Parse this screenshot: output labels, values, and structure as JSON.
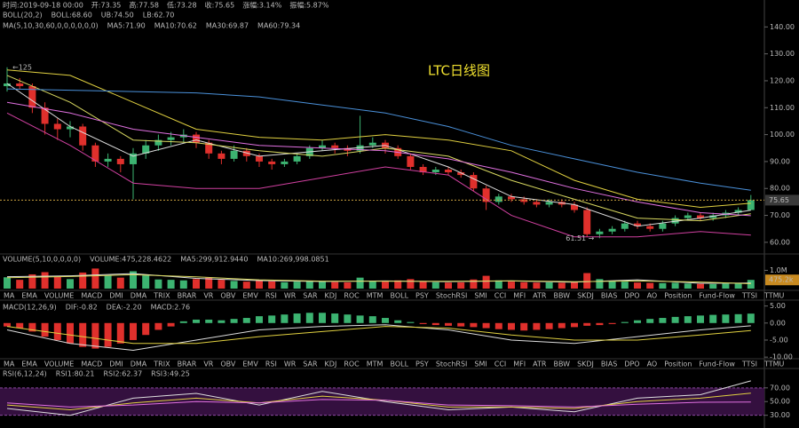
{
  "chart_data": {
    "type": "candlestick",
    "title": "LTC日线图",
    "header": [
      "时间:2019-09-18 00:00",
      "开:73.35",
      "高:77.58",
      "低:73.28",
      "收:75.65",
      "涨幅:3.14%",
      "振幅:5.87%"
    ],
    "tabs": [
      "MA",
      "EMA",
      "VOLUME",
      "MACD",
      "DMI",
      "DMA",
      "TRIX",
      "BRAR",
      "VR",
      "OBV",
      "EMV",
      "RSI",
      "WR",
      "SAR",
      "KDJ",
      "ROC",
      "MTM",
      "BOLL",
      "PSY",
      "StochRSI",
      "SMI",
      "CCI",
      "MFI",
      "ATR",
      "BBW",
      "SKDJ",
      "BIAS",
      "DPO",
      "AO",
      "Position",
      "Fund-Flow",
      "TTSI",
      "TTMU"
    ],
    "up_color": "#3cb371",
    "down_color": "#e0302c",
    "main": {
      "ylim": [
        56,
        150
      ],
      "yticks": [
        {
          "value": 60,
          "label": "60.00"
        },
        {
          "value": 70,
          "label": "70.00"
        },
        {
          "value": 80,
          "label": "80.00"
        },
        {
          "value": 90,
          "label": "90.00"
        },
        {
          "value": 100,
          "label": "100.00"
        },
        {
          "value": 110,
          "label": "110.00"
        },
        {
          "value": 120,
          "label": "120.00"
        },
        {
          "value": 130,
          "label": "130.00"
        },
        {
          "value": 140,
          "label": "140.00"
        }
      ],
      "last": 75.65,
      "candles": [
        [
          118,
          125,
          116,
          119
        ],
        [
          119,
          121,
          117,
          118
        ],
        [
          118,
          119,
          108,
          110
        ],
        [
          110,
          112,
          100,
          104
        ],
        [
          104,
          106,
          98,
          102
        ],
        [
          102,
          105,
          99,
          103
        ],
        [
          103,
          104,
          94,
          96
        ],
        [
          96,
          97,
          88,
          90
        ],
        [
          90,
          93,
          88,
          91
        ],
        [
          91,
          92,
          86,
          89
        ],
        [
          89,
          95,
          76,
          93
        ],
        [
          93,
          98,
          91,
          96
        ],
        [
          96,
          100,
          94,
          98
        ],
        [
          98,
          101,
          96,
          99
        ],
        [
          99,
          102,
          97,
          100
        ],
        [
          100,
          101,
          95,
          97
        ],
        [
          97,
          98,
          91,
          93
        ],
        [
          93,
          94,
          89,
          91
        ],
        [
          91,
          96,
          90,
          94
        ],
        [
          94,
          95,
          90,
          92
        ],
        [
          92,
          93,
          88,
          90
        ],
        [
          90,
          91,
          87,
          89
        ],
        [
          89,
          91,
          88,
          90
        ],
        [
          90,
          93,
          89,
          92
        ],
        [
          92,
          96,
          91,
          95
        ],
        [
          95,
          98,
          94,
          96
        ],
        [
          96,
          97,
          93,
          95
        ],
        [
          95,
          96,
          92,
          94
        ],
        [
          94,
          107,
          93,
          96
        ],
        [
          96,
          99,
          95,
          97
        ],
        [
          97,
          98,
          93,
          95
        ],
        [
          95,
          96,
          91,
          92
        ],
        [
          92,
          93,
          87,
          88
        ],
        [
          88,
          89,
          85,
          86
        ],
        [
          86,
          88,
          85,
          87
        ],
        [
          87,
          88,
          85,
          86
        ],
        [
          86,
          87,
          84,
          85
        ],
        [
          85,
          86,
          79,
          80
        ],
        [
          80,
          81,
          72,
          75
        ],
        [
          75,
          78,
          74,
          77
        ],
        [
          77,
          78,
          75,
          76
        ],
        [
          76,
          77,
          74,
          75
        ],
        [
          75,
          76,
          73,
          74
        ],
        [
          74,
          76,
          73,
          75
        ],
        [
          75,
          76,
          73,
          74
        ],
        [
          74,
          75,
          71,
          72
        ],
        [
          72,
          73,
          62,
          63
        ],
        [
          63,
          65,
          61.51,
          64
        ],
        [
          64,
          66,
          63,
          65
        ],
        [
          65,
          68,
          64,
          67
        ],
        [
          67,
          68,
          65,
          66
        ],
        [
          66,
          67,
          64,
          65
        ],
        [
          65,
          68,
          64,
          67
        ],
        [
          67,
          70,
          66,
          69
        ],
        [
          69,
          71,
          68,
          70
        ],
        [
          70,
          71,
          68,
          69
        ],
        [
          69,
          71,
          68,
          70
        ],
        [
          70,
          72,
          69,
          71
        ],
        [
          71,
          73,
          70,
          72
        ],
        [
          72,
          77.58,
          72,
          75.65
        ]
      ],
      "annotations": [
        {
          "text": "←125",
          "value": 125,
          "index": 0
        },
        {
          "text": "61.51 →",
          "value": 61.51,
          "index": 47
        }
      ],
      "groups": [
        {
          "label": "BOLL(20,2)",
          "texts": [
            "BOLL:68.60"
          ],
          "series": [
            {
              "name": "UB:74.50",
              "color": "#e0d040",
              "x": [
                0,
                5,
                10,
                15,
                20,
                25,
                30,
                35,
                40,
                45,
                50,
                55,
                59
              ],
              "values": [
                124,
                122,
                112,
                102,
                99,
                98,
                100,
                98,
                94,
                83,
                76,
                73,
                74.5
              ]
            },
            {
              "name": "LB:62.70",
              "color": "#d040a0",
              "x": [
                0,
                5,
                10,
                15,
                20,
                25,
                30,
                35,
                40,
                45,
                50,
                55,
                59
              ],
              "values": [
                108,
                96,
                82,
                80,
                80,
                84,
                88,
                85,
                70,
                62,
                62,
                64,
                62.7
              ]
            }
          ]
        },
        {
          "label": "MA(5,10,30,60,0,0,0,0,0,0)",
          "texts": [],
          "series": [
            {
              "name": "MA5:71.90",
              "color": "#dddddd",
              "x": [
                0,
                5,
                10,
                15,
                20,
                25,
                30,
                35,
                40,
                45,
                50,
                55,
                59
              ],
              "values": [
                119,
                103,
                92,
                98,
                92,
                94,
                96,
                88,
                77,
                74,
                66,
                69,
                71.9
              ]
            },
            {
              "name": "MA10:70.62",
              "color": "#d8d860",
              "x": [
                0,
                5,
                10,
                15,
                20,
                25,
                30,
                35,
                40,
                45,
                50,
                55,
                59
              ],
              "values": [
                122,
                112,
                98,
                97,
                94,
                92,
                95,
                92,
                83,
                76,
                69,
                68,
                70.62
              ]
            },
            {
              "name": "MA30:69.87",
              "color": "#e070e0",
              "x": [
                0,
                5,
                10,
                15,
                20,
                25,
                30,
                35,
                40,
                45,
                50,
                55,
                59
              ],
              "values": [
                112,
                108,
                102,
                99,
                96,
                95,
                94,
                91,
                86,
                80,
                75,
                71,
                69.87
              ]
            },
            {
              "name": "MA60:79.34",
              "color": "#4a90d9",
              "x": [
                0,
                5,
                10,
                15,
                20,
                25,
                30,
                35,
                40,
                45,
                50,
                55,
                59
              ],
              "values": [
                117,
                116.5,
                116,
                115.5,
                114,
                111,
                108,
                103,
                96,
                91,
                86,
                82,
                79.34
              ]
            }
          ]
        }
      ]
    },
    "volume": {
      "ylim": [
        0,
        1800000
      ],
      "yticks": [
        {
          "value": 1000000,
          "label": "1.0M"
        }
      ],
      "last": {
        "value": 475228.4622,
        "label": "475.2k"
      },
      "values": [
        620000,
        480000,
        780000,
        900000,
        650000,
        520000,
        880000,
        1100000,
        700000,
        600000,
        950000,
        720000,
        500000,
        480000,
        450000,
        520000,
        600000,
        480000,
        420000,
        380000,
        450000,
        400000,
        350000,
        380000,
        420000,
        380000,
        360000,
        340000,
        600000,
        420000,
        380000,
        450000,
        520000,
        400000,
        350000,
        330000,
        340000,
        500000,
        700000,
        450000,
        380000,
        350000,
        330000,
        340000,
        320000,
        380000,
        850000,
        520000,
        420000,
        380000,
        330000,
        310000,
        300000,
        320000,
        280000,
        260000,
        250000,
        270000,
        300000,
        475228.4622
      ],
      "groups": [
        {
          "label": "VOLUME(5,10,0,0,0,0)",
          "texts": [
            "VOLUME:475,228.4622"
          ],
          "series": [
            {
              "name": "MA5:299,912.9440",
              "color": "#dddddd",
              "x": [
                0,
                5,
                10,
                15,
                20,
                25,
                30,
                35,
                40,
                45,
                50,
                55,
                59
              ],
              "values": [
                650000,
                700000,
                820000,
                560000,
                440000,
                390000,
                420000,
                380000,
                420000,
                350000,
                480000,
                290000,
                299912.944
              ]
            },
            {
              "name": "MA10:269,998.0851",
              "color": "#d8d860",
              "x": [
                0,
                5,
                10,
                15,
                20,
                25,
                30,
                35,
                40,
                45,
                50,
                55,
                59
              ],
              "values": [
                600000,
                660000,
                760000,
                640000,
                480000,
                410000,
                400000,
                400000,
                430000,
                380000,
                420000,
                360000,
                269998.0851
              ]
            }
          ]
        }
      ]
    },
    "macd": {
      "ylim": [
        -11,
        6.2
      ],
      "yticks": [
        {
          "value": 5,
          "label": "5.00"
        },
        {
          "value": 0,
          "label": "0.00"
        },
        {
          "value": -5,
          "label": "-5.00"
        },
        {
          "value": -10,
          "label": "-10.00"
        }
      ],
      "values": [
        -1,
        -1.5,
        -2.5,
        -4,
        -5,
        -6,
        -7,
        -7.5,
        -7,
        -6,
        -5,
        -3.5,
        -2,
        -1,
        0.5,
        1,
        1,
        0.8,
        1.2,
        1.5,
        2,
        2.2,
        2.5,
        2.8,
        3,
        3,
        2.8,
        2.5,
        2.2,
        2,
        1.5,
        0.8,
        0.3,
        -0.3,
        -0.6,
        -0.8,
        -1,
        -1.2,
        -1.5,
        -1.8,
        -2,
        -2.2,
        -2,
        -1.8,
        -1.5,
        -1.2,
        -0.8,
        -0.6,
        -0.3,
        0.3,
        0.8,
        1.2,
        1.5,
        1.8,
        2,
        2.2,
        2.4,
        2.5,
        2.6,
        2.76
      ],
      "groups": [
        {
          "label": "MACD(12,26,9)",
          "texts": [],
          "series": [
            {
              "name": "DIF:-0.82",
              "color": "#dddddd",
              "x": [
                0,
                5,
                10,
                15,
                20,
                25,
                30,
                35,
                40,
                45,
                50,
                55,
                59
              ],
              "values": [
                -2,
                -6,
                -8,
                -5,
                -2,
                -1,
                -0.5,
                -2,
                -5,
                -6,
                -4,
                -2,
                -0.82
              ]
            },
            {
              "name": "DEA:-2.20",
              "color": "#e0d040",
              "x": [
                0,
                5,
                10,
                15,
                20,
                25,
                30,
                35,
                40,
                45,
                50,
                55,
                59
              ],
              "values": [
                -1,
                -3.5,
                -6,
                -6,
                -4,
                -2.5,
                -1,
                -1.5,
                -3.5,
                -5,
                -5,
                -3.5,
                -2.2
              ]
            }
          ],
          "tail": [
            "MACD:2.76"
          ]
        }
      ]
    },
    "rsi": {
      "ylim": [
        14,
        97
      ],
      "yticks": [
        {
          "value": 70,
          "label": "70.00"
        },
        {
          "value": 50,
          "label": "50.00"
        },
        {
          "value": 30,
          "label": "30.00"
        }
      ],
      "band": [
        30,
        70
      ],
      "groups": [
        {
          "label": "RSI(6,12,24)",
          "texts": [],
          "series": [
            {
              "name": "RSI1:80.21",
              "color": "#dddddd",
              "x": [
                0,
                5,
                10,
                15,
                20,
                25,
                30,
                35,
                40,
                45,
                50,
                55,
                59
              ],
              "values": [
                40,
                30,
                55,
                62,
                45,
                65,
                50,
                38,
                42,
                35,
                55,
                60,
                80.21
              ]
            },
            {
              "name": "RSI2:62.37",
              "color": "#e0d040",
              "x": [
                0,
                5,
                10,
                15,
                20,
                25,
                30,
                35,
                40,
                45,
                50,
                55,
                59
              ],
              "values": [
                45,
                38,
                48,
                55,
                48,
                58,
                52,
                42,
                42,
                40,
                50,
                55,
                62.37
              ]
            },
            {
              "name": "RSI3:49.25",
              "color": "#e070e0",
              "x": [
                0,
                5,
                10,
                15,
                20,
                25,
                30,
                35,
                40,
                45,
                50,
                55,
                59
              ],
              "values": [
                48,
                42,
                45,
                50,
                48,
                53,
                52,
                45,
                44,
                42,
                46,
                49,
                49.25
              ]
            }
          ]
        }
      ]
    }
  }
}
